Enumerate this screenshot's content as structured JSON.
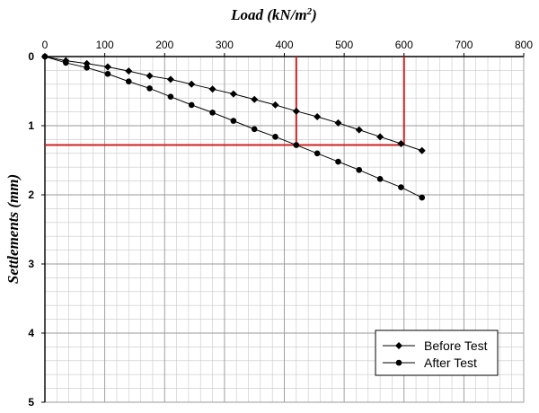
{
  "chart_data": {
    "type": "line",
    "title": "Load (kN/m",
    "title_superscript": "2",
    "title_suffix": ")",
    "xlabel": "Load (kN/m²)",
    "ylabel": "Settlements (mm)",
    "xlim": [
      0,
      800
    ],
    "ylim": [
      0,
      5
    ],
    "y_inverted": true,
    "x_axis_position": "top",
    "x_ticks": [
      0,
      100,
      200,
      300,
      400,
      500,
      600,
      700,
      800
    ],
    "y_ticks": [
      0,
      1,
      2,
      3,
      4,
      5
    ],
    "x_tick_labels": [
      "0",
      "100",
      "200",
      "300",
      "400",
      "500",
      "600",
      "700",
      "800"
    ],
    "y_tick_labels": [
      "0",
      "1",
      "2",
      "3",
      "4",
      "5"
    ],
    "grid": true,
    "minor_grid": true,
    "legend_placement": "bottom-right",
    "series": [
      {
        "name": "Before Test",
        "marker": "diamond",
        "color": "#000000",
        "x": [
          0,
          35,
          70,
          105,
          140,
          175,
          210,
          245,
          280,
          315,
          350,
          385,
          420,
          455,
          490,
          525,
          560,
          595,
          630
        ],
        "y": [
          0,
          0.06,
          0.1,
          0.15,
          0.21,
          0.28,
          0.33,
          0.4,
          0.47,
          0.54,
          0.62,
          0.7,
          0.79,
          0.87,
          0.96,
          1.06,
          1.16,
          1.26,
          1.36
        ]
      },
      {
        "name": "After Test",
        "marker": "circle",
        "color": "#000000",
        "x": [
          0,
          35,
          70,
          105,
          140,
          175,
          210,
          245,
          280,
          315,
          350,
          385,
          420,
          455,
          490,
          525,
          560,
          595,
          630
        ],
        "y": [
          0,
          0.09,
          0.16,
          0.25,
          0.36,
          0.46,
          0.58,
          0.7,
          0.81,
          0.93,
          1.05,
          1.16,
          1.28,
          1.4,
          1.52,
          1.64,
          1.77,
          1.89,
          2.04
        ]
      }
    ],
    "reference_lines": {
      "color": "#cc2222",
      "vertical_x": [
        420,
        600
      ],
      "horizontal_y": 1.28,
      "horizontal_x_range": [
        0,
        600
      ],
      "vertical_y_range": [
        0,
        1.28
      ]
    }
  }
}
